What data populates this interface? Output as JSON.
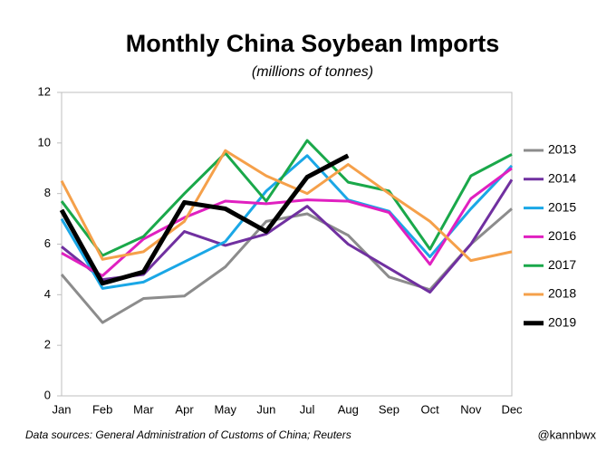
{
  "chart_data": {
    "type": "line",
    "title": "Monthly China Soybean Imports",
    "subtitle": "(millions of tonnes)",
    "source": "Data sources: General Administration of Customs of China; Reuters",
    "credit": "@kannbwx",
    "categories": [
      "Jan",
      "Feb",
      "Mar",
      "Apr",
      "May",
      "Jun",
      "Jul",
      "Aug",
      "Sep",
      "Oct",
      "Nov",
      "Dec"
    ],
    "ylim": [
      0,
      12
    ],
    "yticks": [
      0,
      2,
      4,
      6,
      8,
      10,
      12
    ],
    "grid": false,
    "legend": "right",
    "series": [
      {
        "name": "2013",
        "color": "#8c8c8c",
        "width": 3,
        "values": [
          4.8,
          2.9,
          3.85,
          3.95,
          5.1,
          6.9,
          7.2,
          6.35,
          4.7,
          4.2,
          6.0,
          7.4
        ]
      },
      {
        "name": "2014",
        "color": "#7030a0",
        "width": 3,
        "values": [
          5.9,
          4.6,
          4.8,
          6.5,
          5.95,
          6.4,
          7.5,
          6.0,
          5.05,
          4.1,
          6.0,
          8.55
        ]
      },
      {
        "name": "2015",
        "color": "#1aa7e6",
        "width": 3,
        "values": [
          7.0,
          4.25,
          4.5,
          5.3,
          6.1,
          8.1,
          9.5,
          7.75,
          7.3,
          5.5,
          7.4,
          9.1
        ]
      },
      {
        "name": "2016",
        "color": "#e020c0",
        "width": 3,
        "values": [
          5.65,
          4.75,
          6.2,
          7.05,
          7.7,
          7.6,
          7.75,
          7.7,
          7.25,
          5.2,
          7.8,
          9.0
        ]
      },
      {
        "name": "2017",
        "color": "#1aa84a",
        "width": 3,
        "values": [
          7.7,
          5.55,
          6.3,
          8.0,
          9.6,
          7.7,
          10.1,
          8.45,
          8.1,
          5.8,
          8.7,
          9.55
        ]
      },
      {
        "name": "2018",
        "color": "#f5a04a",
        "width": 3,
        "values": [
          8.5,
          5.4,
          5.7,
          6.9,
          9.7,
          8.7,
          8.0,
          9.15,
          8.0,
          6.9,
          5.35,
          5.7
        ]
      },
      {
        "name": "2019",
        "color": "#000000",
        "width": 5,
        "values": [
          7.35,
          4.45,
          4.9,
          7.65,
          7.4,
          6.5,
          8.65,
          9.5,
          null,
          null,
          null,
          null
        ]
      }
    ]
  }
}
